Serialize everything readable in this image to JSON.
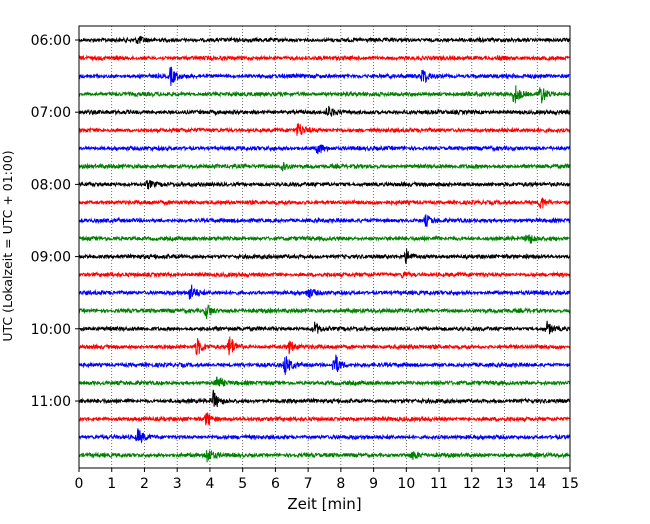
{
  "chart_data": {
    "type": "line",
    "chart_kind": "helicorder",
    "xlabel": "Zeit  [min]",
    "ylabel": "UTC (Lokalzeit = UTC + 01:00)",
    "xlim": [
      0,
      15
    ],
    "x_ticks": [
      "0",
      "1",
      "2",
      "3",
      "4",
      "5",
      "6",
      "7",
      "8",
      "9",
      "10",
      "11",
      "12",
      "13",
      "14",
      "15"
    ],
    "y_tick_labels": [
      "06:00",
      "07:00",
      "08:00",
      "09:00",
      "10:00",
      "11:00"
    ],
    "grid": "vertical dotted",
    "trace_colors": [
      "#000000",
      "#ff0000",
      "#0000ff",
      "#008000"
    ],
    "trace_start_times": [
      "06:00",
      "06:15",
      "06:30",
      "06:45",
      "07:00",
      "07:15",
      "07:30",
      "07:45",
      "08:00",
      "08:15",
      "08:30",
      "08:45",
      "09:00",
      "09:15",
      "09:30",
      "09:45",
      "10:00",
      "10:15",
      "10:30",
      "10:45",
      "11:00",
      "11:15",
      "11:30",
      "11:45"
    ],
    "events": [
      {
        "row": 0,
        "minute": 1.8,
        "amp": 0.35
      },
      {
        "row": 1,
        "minute": 12.8,
        "amp": 0.2
      },
      {
        "row": 2,
        "minute": 2.8,
        "amp": 0.8
      },
      {
        "row": 2,
        "minute": 10.5,
        "amp": 0.8
      },
      {
        "row": 3,
        "minute": 13.3,
        "amp": 1.0
      },
      {
        "row": 3,
        "minute": 14.1,
        "amp": 1.0
      },
      {
        "row": 4,
        "minute": 7.6,
        "amp": 0.5
      },
      {
        "row": 5,
        "minute": 6.7,
        "amp": 0.7
      },
      {
        "row": 6,
        "minute": 7.3,
        "amp": 0.6
      },
      {
        "row": 7,
        "minute": 6.2,
        "amp": 0.6
      },
      {
        "row": 8,
        "minute": 2.1,
        "amp": 0.4
      },
      {
        "row": 9,
        "minute": 14.1,
        "amp": 0.7
      },
      {
        "row": 10,
        "minute": 10.6,
        "amp": 0.5
      },
      {
        "row": 11,
        "minute": 13.7,
        "amp": 0.6
      },
      {
        "row": 12,
        "minute": 10.0,
        "amp": 0.6
      },
      {
        "row": 13,
        "minute": 9.9,
        "amp": 0.3
      },
      {
        "row": 14,
        "minute": 3.4,
        "amp": 0.8
      },
      {
        "row": 14,
        "minute": 7.0,
        "amp": 0.5
      },
      {
        "row": 15,
        "minute": 3.9,
        "amp": 0.7
      },
      {
        "row": 16,
        "minute": 7.2,
        "amp": 0.6
      },
      {
        "row": 16,
        "minute": 14.3,
        "amp": 0.6
      },
      {
        "row": 17,
        "minute": 4.6,
        "amp": 1.1
      },
      {
        "row": 17,
        "minute": 3.6,
        "amp": 0.8
      },
      {
        "row": 17,
        "minute": 6.4,
        "amp": 0.6
      },
      {
        "row": 18,
        "minute": 7.8,
        "amp": 1.2
      },
      {
        "row": 18,
        "minute": 6.3,
        "amp": 0.9
      },
      {
        "row": 19,
        "minute": 4.2,
        "amp": 0.7
      },
      {
        "row": 20,
        "minute": 4.1,
        "amp": 0.9
      },
      {
        "row": 21,
        "minute": 3.9,
        "amp": 0.7
      },
      {
        "row": 22,
        "minute": 1.8,
        "amp": 0.7
      },
      {
        "row": 23,
        "minute": 3.9,
        "amp": 0.7
      },
      {
        "row": 23,
        "minute": 10.2,
        "amp": 0.4
      }
    ]
  }
}
